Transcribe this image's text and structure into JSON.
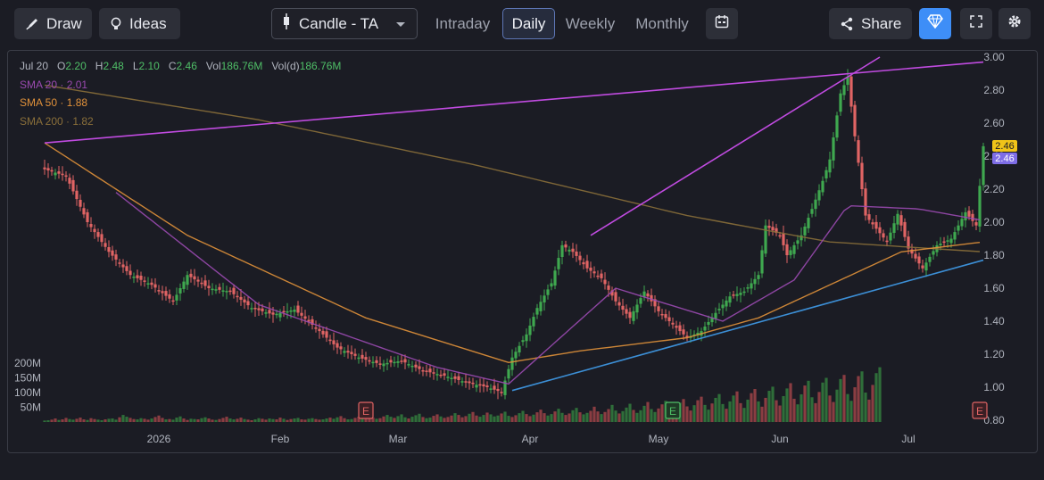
{
  "toolbar": {
    "draw_label": "Draw",
    "ideas_label": "Ideas",
    "chart_type_label": "Candle - TA",
    "timeframes": [
      "Intraday",
      "Daily",
      "Weekly",
      "Monthly"
    ],
    "active_timeframe": "Daily",
    "share_label": "Share",
    "icons": [
      "brush-icon",
      "lightbulb-icon",
      "candle-icon",
      "chevron-down-icon",
      "calendar-icon",
      "share-icon",
      "diamond-icon",
      "fullscreen-icon",
      "gear-icon"
    ]
  },
  "legend": {
    "date": "Jul 20",
    "open_label": "O",
    "open": "2.20",
    "high_label": "H",
    "high": "2.48",
    "low_label": "L",
    "low": "2.10",
    "close_label": "C",
    "close": "2.46",
    "vol_label": "Vol",
    "vol": "186.76M",
    "vold_label": "Vol(d)",
    "vold": "186.76M",
    "sma20_label": "SMA 20",
    "sma20": "2.01",
    "sma50_label": "SMA 50",
    "sma50": "1.88",
    "sma200_label": "SMA 200",
    "sma200": "1.82"
  },
  "colors": {
    "background": "#1b1c24",
    "up": "#3fa84f",
    "down": "#e06464",
    "sma20": "#9a4ab0",
    "sma50": "#e0913a",
    "sma200": "#8a6f3a",
    "trend_purple": "#c04be0",
    "trend_blue": "#3c8fd6",
    "price_tag": "#f0c419",
    "price_tag2": "#7e6de6"
  },
  "chart_data": {
    "type": "candlestick",
    "y_axis_ticks": [
      "3.00",
      "2.80",
      "2.60",
      "2.40",
      "2.20",
      "2.00",
      "1.80",
      "1.60",
      "1.40",
      "1.20",
      "1.00",
      "0.80"
    ],
    "ylim": [
      0.8,
      3.0
    ],
    "x_axis_labels": [
      "2026",
      "Feb",
      "Mar",
      "Apr",
      "May",
      "Jun",
      "Jul"
    ],
    "volume_axis_labels": [
      "200M",
      "150M",
      "100M",
      "50M"
    ],
    "last_price_labels": [
      "2.46",
      "2.46"
    ],
    "earnings_markers": [
      {
        "label": "E",
        "month": "Mar"
      },
      {
        "label": "E",
        "month": "May"
      },
      {
        "label": "E",
        "month": "Jul"
      }
    ],
    "price_path": [
      [
        0,
        2.32
      ],
      [
        6,
        2.28
      ],
      [
        12,
        2.0
      ],
      [
        18,
        1.82
      ],
      [
        24,
        1.68
      ],
      [
        30,
        1.62
      ],
      [
        36,
        1.52
      ],
      [
        40,
        1.68
      ],
      [
        46,
        1.6
      ],
      [
        52,
        1.58
      ],
      [
        58,
        1.48
      ],
      [
        64,
        1.44
      ],
      [
        70,
        1.47
      ],
      [
        76,
        1.36
      ],
      [
        82,
        1.24
      ],
      [
        88,
        1.18
      ],
      [
        94,
        1.14
      ],
      [
        100,
        1.16
      ],
      [
        106,
        1.1
      ],
      [
        112,
        1.07
      ],
      [
        118,
        1.03
      ],
      [
        124,
        1.0
      ],
      [
        128,
        0.97
      ],
      [
        131,
        1.18
      ],
      [
        135,
        1.32
      ],
      [
        138,
        1.48
      ],
      [
        142,
        1.63
      ],
      [
        145,
        1.86
      ],
      [
        148,
        1.82
      ],
      [
        152,
        1.72
      ],
      [
        156,
        1.66
      ],
      [
        160,
        1.52
      ],
      [
        164,
        1.42
      ],
      [
        168,
        1.58
      ],
      [
        172,
        1.46
      ],
      [
        176,
        1.38
      ],
      [
        180,
        1.3
      ],
      [
        184,
        1.34
      ],
      [
        188,
        1.45
      ],
      [
        192,
        1.55
      ],
      [
        196,
        1.58
      ],
      [
        200,
        1.68
      ],
      [
        202,
        1.98
      ],
      [
        206,
        1.92
      ],
      [
        208,
        1.8
      ],
      [
        212,
        1.92
      ],
      [
        215,
        2.08
      ],
      [
        218,
        2.25
      ],
      [
        220,
        2.38
      ],
      [
        223,
        2.78
      ],
      [
        225,
        2.88
      ],
      [
        227,
        2.52
      ],
      [
        230,
        2.04
      ],
      [
        233,
        1.96
      ],
      [
        236,
        1.88
      ],
      [
        239,
        2.05
      ],
      [
        242,
        1.84
      ],
      [
        246,
        1.72
      ],
      [
        250,
        1.86
      ],
      [
        254,
        1.9
      ],
      [
        258,
        2.06
      ],
      [
        261,
        1.98
      ],
      [
        263,
        2.46
      ]
    ],
    "sma20": [
      [
        20,
        2.18
      ],
      [
        60,
        1.5
      ],
      [
        110,
        1.12
      ],
      [
        130,
        1.02
      ],
      [
        160,
        1.6
      ],
      [
        190,
        1.4
      ],
      [
        210,
        1.65
      ],
      [
        225,
        2.1
      ],
      [
        245,
        2.08
      ],
      [
        263,
        2.01
      ]
    ],
    "sma50": [
      [
        0,
        2.48
      ],
      [
        40,
        1.92
      ],
      [
        90,
        1.42
      ],
      [
        130,
        1.15
      ],
      [
        150,
        1.22
      ],
      [
        180,
        1.3
      ],
      [
        200,
        1.42
      ],
      [
        220,
        1.62
      ],
      [
        240,
        1.82
      ],
      [
        263,
        1.88
      ]
    ],
    "sma200": [
      [
        0,
        2.83
      ],
      [
        60,
        2.62
      ],
      [
        120,
        2.35
      ],
      [
        180,
        2.04
      ],
      [
        220,
        1.88
      ],
      [
        263,
        1.82
      ]
    ],
    "trendlines": [
      {
        "color": "trend_purple",
        "from": [
          0,
          2.48
        ],
        "to": [
          263,
          2.97
        ]
      },
      {
        "color": "trend_purple",
        "from": [
          153,
          1.92
        ],
        "to": [
          234,
          3.0
        ]
      },
      {
        "color": "trend_blue",
        "from": [
          131,
          0.98
        ],
        "to": [
          263,
          1.77
        ]
      }
    ],
    "volumes_m": [
      5,
      6,
      8,
      12,
      7,
      9,
      14,
      10,
      8,
      11,
      15,
      9,
      7,
      13,
      10,
      8,
      6,
      9,
      11,
      12,
      8,
      16,
      24,
      18,
      14,
      10,
      9,
      13,
      11,
      8,
      12,
      17,
      22,
      14,
      9,
      10,
      8,
      15,
      19,
      12,
      7,
      11,
      10,
      9,
      13,
      16,
      12,
      8,
      7,
      10,
      14,
      18,
      12,
      9,
      11,
      15,
      10,
      8,
      6,
      9,
      13,
      11,
      8,
      12,
      10,
      9,
      15,
      11,
      7,
      10,
      12,
      14,
      9,
      8,
      11,
      13,
      10,
      8,
      9,
      12,
      15,
      11,
      16,
      20,
      13,
      9,
      10,
      14,
      18,
      12,
      17,
      22,
      15,
      11,
      13,
      19,
      24,
      18,
      14,
      20,
      26,
      16,
      12,
      18,
      23,
      28,
      17,
      13,
      15,
      21,
      26,
      19,
      14,
      17,
      22,
      30,
      24,
      16,
      20,
      28,
      34,
      22,
      18,
      24,
      32,
      26,
      19,
      22,
      29,
      35,
      21,
      17,
      23,
      30,
      38,
      27,
      20,
      25,
      33,
      42,
      30,
      22,
      27,
      36,
      45,
      31,
      24,
      29,
      40,
      48,
      33,
      26,
      31,
      38,
      52,
      36,
      27,
      34,
      44,
      58,
      39,
      29,
      37,
      49,
      62,
      41,
      31,
      40,
      55,
      68,
      44,
      34,
      46,
      60,
      72,
      49,
      36,
      51,
      66,
      78,
      53,
      39,
      57,
      74,
      86,
      58,
      42,
      63,
      82,
      95,
      61,
      45,
      70,
      90,
      104,
      64,
      48,
      76,
      98,
      112,
      70,
      52,
      82,
      106,
      120,
      74,
      56,
      88,
      114,
      132,
      79,
      60,
      94,
      124,
      140,
      84,
      64,
      102,
      134,
      150,
      90,
      68,
      110,
      146,
      160,
      95,
      72,
      118,
      156,
      172,
      100,
      76,
      126,
      166,
      186
    ]
  }
}
